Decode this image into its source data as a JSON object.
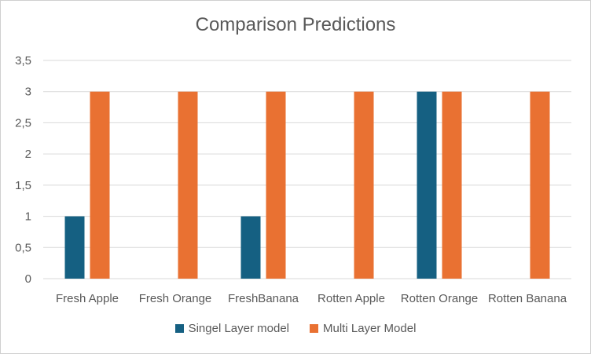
{
  "chart_data": {
    "type": "bar",
    "title": "Comparison Predictions",
    "xlabel": "",
    "ylabel": "",
    "ylim": [
      0,
      3.5
    ],
    "yticks": [
      "0",
      "0,5",
      "1",
      "1,5",
      "2",
      "2,5",
      "3",
      "3,5"
    ],
    "ytick_values": [
      0,
      0.5,
      1,
      1.5,
      2,
      2.5,
      3,
      3.5
    ],
    "categories": [
      "Fresh Apple",
      "Fresh Orange",
      "FreshBanana",
      "Rotten Apple",
      "Rotten Orange",
      "Rotten Banana"
    ],
    "series": [
      {
        "name": "Singel Layer model",
        "values": [
          1,
          0,
          1,
          0,
          3,
          0
        ],
        "color": "#156082"
      },
      {
        "name": "Multi Layer Model",
        "values": [
          3,
          3,
          3,
          3,
          3,
          3
        ],
        "color": "#E97132"
      }
    ],
    "grid": true,
    "legend_position": "bottom"
  }
}
